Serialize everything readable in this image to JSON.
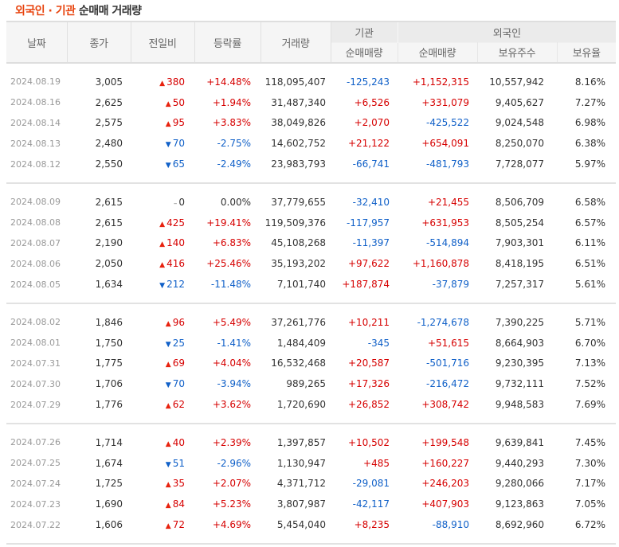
{
  "header": {
    "title_accent": "외국인 · 기관",
    "title_rest": " 순매매 거래량"
  },
  "columns": {
    "date": "날짜",
    "close": "종가",
    "change": "전일비",
    "rate": "등락률",
    "volume": "거래량",
    "inst_group": "기관",
    "inst_net": "순매매량",
    "foreign_group": "외국인",
    "foreign_net": "순매매량",
    "foreign_holdings": "보유주수",
    "foreign_ratio": "보유율"
  },
  "colors": {
    "accent": "#e8440e",
    "up": "#d60000",
    "down": "#1060c8"
  },
  "groups": [
    {
      "rows": [
        {
          "date": "2024.08.19",
          "close": "3,005",
          "dir": "up",
          "change": "380",
          "rate": "+14.48%",
          "volume": "118,095,407",
          "inst": "-125,243",
          "foreign": "+1,152,315",
          "holdings": "10,557,942",
          "ratio": "8.16%"
        },
        {
          "date": "2024.08.16",
          "close": "2,625",
          "dir": "up",
          "change": "50",
          "rate": "+1.94%",
          "volume": "31,487,340",
          "inst": "+6,526",
          "foreign": "+331,079",
          "holdings": "9,405,627",
          "ratio": "7.27%"
        },
        {
          "date": "2024.08.14",
          "close": "2,575",
          "dir": "up",
          "change": "95",
          "rate": "+3.83%",
          "volume": "38,049,826",
          "inst": "+2,070",
          "foreign": "-425,522",
          "holdings": "9,024,548",
          "ratio": "6.98%"
        },
        {
          "date": "2024.08.13",
          "close": "2,480",
          "dir": "down",
          "change": "70",
          "rate": "-2.75%",
          "volume": "14,602,752",
          "inst": "+21,122",
          "foreign": "+654,091",
          "holdings": "8,250,070",
          "ratio": "6.38%"
        },
        {
          "date": "2024.08.12",
          "close": "2,550",
          "dir": "down",
          "change": "65",
          "rate": "-2.49%",
          "volume": "23,983,793",
          "inst": "-66,741",
          "foreign": "-481,793",
          "holdings": "7,728,077",
          "ratio": "5.97%"
        }
      ]
    },
    {
      "rows": [
        {
          "date": "2024.08.09",
          "close": "2,615",
          "dir": "flat",
          "change": "0",
          "rate": "0.00%",
          "volume": "37,779,655",
          "inst": "-32,410",
          "foreign": "+21,455",
          "holdings": "8,506,709",
          "ratio": "6.58%"
        },
        {
          "date": "2024.08.08",
          "close": "2,615",
          "dir": "up",
          "change": "425",
          "rate": "+19.41%",
          "volume": "119,509,376",
          "inst": "-117,957",
          "foreign": "+631,953",
          "holdings": "8,505,254",
          "ratio": "6.57%"
        },
        {
          "date": "2024.08.07",
          "close": "2,190",
          "dir": "up",
          "change": "140",
          "rate": "+6.83%",
          "volume": "45,108,268",
          "inst": "-11,397",
          "foreign": "-514,894",
          "holdings": "7,903,301",
          "ratio": "6.11%"
        },
        {
          "date": "2024.08.06",
          "close": "2,050",
          "dir": "up",
          "change": "416",
          "rate": "+25.46%",
          "volume": "35,193,202",
          "inst": "+97,622",
          "foreign": "+1,160,878",
          "holdings": "8,418,195",
          "ratio": "6.51%"
        },
        {
          "date": "2024.08.05",
          "close": "1,634",
          "dir": "down",
          "change": "212",
          "rate": "-11.48%",
          "volume": "7,101,740",
          "inst": "+187,874",
          "foreign": "-37,879",
          "holdings": "7,257,317",
          "ratio": "5.61%"
        }
      ]
    },
    {
      "rows": [
        {
          "date": "2024.08.02",
          "close": "1,846",
          "dir": "up",
          "change": "96",
          "rate": "+5.49%",
          "volume": "37,261,776",
          "inst": "+10,211",
          "foreign": "-1,274,678",
          "holdings": "7,390,225",
          "ratio": "5.71%"
        },
        {
          "date": "2024.08.01",
          "close": "1,750",
          "dir": "down",
          "change": "25",
          "rate": "-1.41%",
          "volume": "1,484,409",
          "inst": "-345",
          "foreign": "+51,615",
          "holdings": "8,664,903",
          "ratio": "6.70%"
        },
        {
          "date": "2024.07.31",
          "close": "1,775",
          "dir": "up",
          "change": "69",
          "rate": "+4.04%",
          "volume": "16,532,468",
          "inst": "+20,587",
          "foreign": "-501,716",
          "holdings": "9,230,395",
          "ratio": "7.13%"
        },
        {
          "date": "2024.07.30",
          "close": "1,706",
          "dir": "down",
          "change": "70",
          "rate": "-3.94%",
          "volume": "989,265",
          "inst": "+17,326",
          "foreign": "-216,472",
          "holdings": "9,732,111",
          "ratio": "7.52%"
        },
        {
          "date": "2024.07.29",
          "close": "1,776",
          "dir": "up",
          "change": "62",
          "rate": "+3.62%",
          "volume": "1,720,690",
          "inst": "+26,852",
          "foreign": "+308,742",
          "holdings": "9,948,583",
          "ratio": "7.69%"
        }
      ]
    },
    {
      "rows": [
        {
          "date": "2024.07.26",
          "close": "1,714",
          "dir": "up",
          "change": "40",
          "rate": "+2.39%",
          "volume": "1,397,857",
          "inst": "+10,502",
          "foreign": "+199,548",
          "holdings": "9,639,841",
          "ratio": "7.45%"
        },
        {
          "date": "2024.07.25",
          "close": "1,674",
          "dir": "down",
          "change": "51",
          "rate": "-2.96%",
          "volume": "1,130,947",
          "inst": "+485",
          "foreign": "+160,227",
          "holdings": "9,440,293",
          "ratio": "7.30%"
        },
        {
          "date": "2024.07.24",
          "close": "1,725",
          "dir": "up",
          "change": "35",
          "rate": "+2.07%",
          "volume": "4,371,712",
          "inst": "-29,081",
          "foreign": "+246,203",
          "holdings": "9,280,066",
          "ratio": "7.17%"
        },
        {
          "date": "2024.07.23",
          "close": "1,690",
          "dir": "up",
          "change": "84",
          "rate": "+5.23%",
          "volume": "3,807,987",
          "inst": "-42,117",
          "foreign": "+407,903",
          "holdings": "9,123,863",
          "ratio": "7.05%"
        },
        {
          "date": "2024.07.22",
          "close": "1,606",
          "dir": "up",
          "change": "72",
          "rate": "+4.69%",
          "volume": "5,454,040",
          "inst": "+8,235",
          "foreign": "-88,910",
          "holdings": "8,692,960",
          "ratio": "6.72%"
        }
      ]
    }
  ]
}
